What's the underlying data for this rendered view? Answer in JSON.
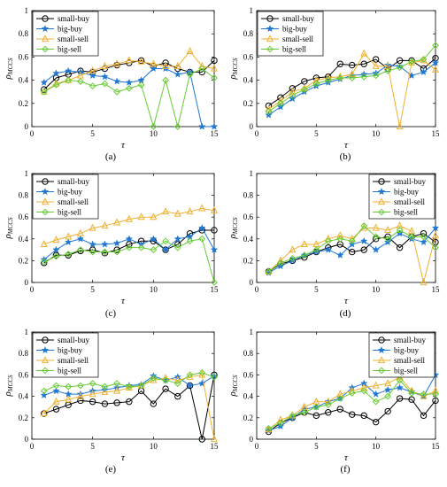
{
  "colors": {
    "small-buy": "#000000",
    "big-buy": "#1f77d4",
    "small-sell": "#f0b030",
    "big-sell": "#66cc33"
  },
  "markers": {
    "small-buy": "circle",
    "big-buy": "star",
    "small-sell": "triangle",
    "big-sell": "diamond"
  },
  "chart_data": [
    {
      "type": "line",
      "caption": "(a)",
      "xlabel": "τ",
      "ylabel": "ρMCCS",
      "xlim": [
        0,
        15
      ],
      "ylim": [
        0,
        1
      ],
      "xticks": [
        0,
        5,
        10,
        15
      ],
      "yticks": [
        0,
        0.2,
        0.4,
        0.6,
        0.8,
        1
      ],
      "ytick_labels": [
        "0",
        "0.2",
        "0.4",
        "0.6",
        "0.8",
        "1"
      ],
      "legend_position": "top-left",
      "x": [
        1,
        2,
        3,
        4,
        5,
        6,
        7,
        8,
        9,
        10,
        11,
        12,
        13,
        14,
        15
      ],
      "series": [
        {
          "name": "small-buy",
          "values": [
            0.32,
            0.42,
            0.45,
            0.48,
            0.47,
            0.5,
            0.53,
            0.55,
            0.57,
            0.52,
            0.55,
            0.5,
            0.47,
            0.47,
            0.57
          ]
        },
        {
          "name": "big-buy",
          "values": [
            0.38,
            0.46,
            0.48,
            0.47,
            0.44,
            0.43,
            0.39,
            0.38,
            0.4,
            0.5,
            0.5,
            0.45,
            0.47,
            0.0,
            0.0
          ]
        },
        {
          "name": "small-sell",
          "values": [
            0.3,
            0.37,
            0.4,
            0.44,
            0.48,
            0.52,
            0.54,
            0.57,
            0.56,
            0.54,
            0.52,
            0.52,
            0.65,
            0.52,
            0.5
          ]
        },
        {
          "name": "big-sell",
          "values": [
            0.3,
            0.36,
            0.4,
            0.39,
            0.35,
            0.37,
            0.3,
            0.33,
            0.36,
            0.0,
            0.4,
            0.0,
            0.45,
            0.5,
            0.42
          ]
        }
      ]
    },
    {
      "type": "line",
      "caption": "(b)",
      "xlabel": "τ",
      "ylabel": "ρMCCS",
      "xlim": [
        0,
        15
      ],
      "ylim": [
        0,
        1
      ],
      "xticks": [
        0,
        5,
        10,
        15
      ],
      "yticks": [
        0,
        0.2,
        0.4,
        0.6,
        0.8,
        1
      ],
      "ytick_labels": [
        "0",
        "0.2",
        "0.4",
        "0.6",
        "0.8",
        "1"
      ],
      "legend_position": "top-left",
      "x": [
        1,
        2,
        3,
        4,
        5,
        6,
        7,
        8,
        9,
        10,
        11,
        12,
        13,
        14,
        15
      ],
      "series": [
        {
          "name": "small-buy",
          "values": [
            0.18,
            0.25,
            0.33,
            0.39,
            0.42,
            0.43,
            0.54,
            0.53,
            0.54,
            0.58,
            0.5,
            0.57,
            0.57,
            0.5,
            0.59
          ]
        },
        {
          "name": "big-buy",
          "values": [
            0.1,
            0.17,
            0.24,
            0.3,
            0.35,
            0.38,
            0.41,
            0.44,
            0.45,
            0.46,
            0.53,
            0.52,
            0.44,
            0.47,
            0.55
          ]
        },
        {
          "name": "small-sell",
          "values": [
            0.15,
            0.22,
            0.3,
            0.33,
            0.4,
            0.42,
            0.43,
            0.45,
            0.63,
            0.52,
            0.52,
            0.0,
            0.55,
            0.57,
            0.49
          ]
        },
        {
          "name": "big-sell",
          "values": [
            0.13,
            0.2,
            0.27,
            0.32,
            0.37,
            0.4,
            0.42,
            0.42,
            0.43,
            0.44,
            0.48,
            0.51,
            0.56,
            0.58,
            0.7
          ]
        }
      ]
    },
    {
      "type": "line",
      "caption": "(c)",
      "xlabel": "τ",
      "ylabel": "ρMCCS",
      "xlim": [
        0,
        15
      ],
      "ylim": [
        0,
        1
      ],
      "xticks": [
        0,
        5,
        10,
        15
      ],
      "yticks": [
        0,
        0.2,
        0.4,
        0.6,
        0.8,
        1
      ],
      "ytick_labels": [
        "0",
        "0.2",
        "0.4",
        "0.6",
        "0.8",
        "1"
      ],
      "legend_position": "top-left",
      "x": [
        1,
        2,
        3,
        4,
        5,
        6,
        7,
        8,
        9,
        10,
        11,
        12,
        13,
        14,
        15
      ],
      "series": [
        {
          "name": "small-buy",
          "values": [
            0.18,
            0.25,
            0.25,
            0.29,
            0.3,
            0.27,
            0.3,
            0.35,
            0.38,
            0.38,
            0.3,
            0.35,
            0.45,
            0.48,
            0.48
          ]
        },
        {
          "name": "big-buy",
          "values": [
            0.21,
            0.3,
            0.37,
            0.4,
            0.35,
            0.35,
            0.36,
            0.4,
            0.35,
            0.4,
            0.3,
            0.4,
            0.42,
            0.5,
            0.3
          ]
        },
        {
          "name": "small-sell",
          "values": [
            0.35,
            0.39,
            0.42,
            0.45,
            0.5,
            0.52,
            0.55,
            0.58,
            0.6,
            0.6,
            0.65,
            0.63,
            0.65,
            0.68,
            0.66
          ]
        },
        {
          "name": "big-sell",
          "values": [
            0.19,
            0.24,
            0.26,
            0.3,
            0.28,
            0.28,
            0.28,
            0.32,
            0.32,
            0.3,
            0.38,
            0.32,
            0.38,
            0.4,
            0.0
          ]
        }
      ]
    },
    {
      "type": "line",
      "caption": "(d)",
      "xlabel": "τ",
      "ylabel": "ρMCCS",
      "xlim": [
        0,
        15
      ],
      "ylim": [
        0,
        1
      ],
      "xticks": [
        0,
        5,
        10,
        15
      ],
      "yticks": [
        0,
        0.2,
        0.4,
        0.6,
        0.8,
        1
      ],
      "ytick_labels": [
        "0",
        "0.2",
        "0.4",
        "0.6",
        "0.8",
        "1"
      ],
      "legend_position": "top-right",
      "x": [
        1,
        2,
        3,
        4,
        5,
        6,
        7,
        8,
        9,
        10,
        11,
        12,
        13,
        14,
        15
      ],
      "series": [
        {
          "name": "small-buy",
          "values": [
            0.1,
            0.17,
            0.2,
            0.23,
            0.28,
            0.32,
            0.35,
            0.28,
            0.3,
            0.4,
            0.42,
            0.32,
            0.42,
            0.45,
            0.37
          ]
        },
        {
          "name": "big-buy",
          "values": [
            0.09,
            0.15,
            0.2,
            0.25,
            0.28,
            0.3,
            0.25,
            0.35,
            0.38,
            0.3,
            0.37,
            0.45,
            0.4,
            0.37,
            0.5
          ]
        },
        {
          "name": "small-sell",
          "values": [
            0.1,
            0.2,
            0.3,
            0.35,
            0.35,
            0.4,
            0.43,
            0.4,
            0.5,
            0.5,
            0.48,
            0.52,
            0.47,
            0.0,
            0.43
          ]
        },
        {
          "name": "big-sell",
          "values": [
            0.1,
            0.18,
            0.22,
            0.25,
            0.3,
            0.38,
            0.4,
            0.38,
            0.52,
            0.42,
            0.4,
            0.48,
            0.42,
            0.42,
            0.32
          ]
        }
      ]
    },
    {
      "type": "line",
      "caption": "(e)",
      "xlabel": "τ",
      "ylabel": "ρMCCS",
      "xlim": [
        0,
        15
      ],
      "ylim": [
        0,
        1
      ],
      "xticks": [
        0,
        5,
        10,
        15
      ],
      "yticks": [
        0,
        0.2,
        0.4,
        0.6,
        0.8,
        1
      ],
      "ytick_labels": [
        "0",
        "0.2",
        "0.4",
        "0.6",
        "0.8",
        "1"
      ],
      "legend_position": "top-left",
      "x": [
        1,
        2,
        3,
        4,
        5,
        6,
        7,
        8,
        9,
        10,
        11,
        12,
        13,
        14,
        15
      ],
      "series": [
        {
          "name": "small-buy",
          "values": [
            0.24,
            0.28,
            0.32,
            0.36,
            0.35,
            0.33,
            0.34,
            0.35,
            0.45,
            0.33,
            0.47,
            0.4,
            0.5,
            0.0,
            0.6
          ]
        },
        {
          "name": "big-buy",
          "values": [
            0.41,
            0.45,
            0.42,
            0.42,
            0.45,
            0.46,
            0.48,
            0.5,
            0.51,
            0.59,
            0.55,
            0.58,
            0.5,
            0.52,
            0.59
          ]
        },
        {
          "name": "small-sell",
          "values": [
            0.24,
            0.35,
            0.37,
            0.4,
            0.42,
            0.44,
            0.45,
            0.48,
            0.5,
            0.55,
            0.57,
            0.55,
            0.58,
            0.6,
            0.0
          ]
        },
        {
          "name": "big-sell",
          "values": [
            0.45,
            0.5,
            0.49,
            0.5,
            0.52,
            0.49,
            0.52,
            0.49,
            0.5,
            0.57,
            0.55,
            0.52,
            0.6,
            0.62,
            0.58
          ]
        }
      ]
    },
    {
      "type": "line",
      "caption": "(f)",
      "xlabel": "τ",
      "ylabel": "ρMCCS",
      "xlim": [
        0,
        15
      ],
      "ylim": [
        0,
        1
      ],
      "xticks": [
        0,
        5,
        10,
        15
      ],
      "yticks": [
        0,
        0.2,
        0.4,
        0.6,
        0.8,
        1
      ],
      "ytick_labels": [
        "0",
        "0.2",
        "0.4",
        "0.6",
        "0.8",
        "1"
      ],
      "legend_position": "top-right",
      "x": [
        1,
        2,
        3,
        4,
        5,
        6,
        7,
        8,
        9,
        10,
        11,
        12,
        13,
        14,
        15
      ],
      "series": [
        {
          "name": "small-buy",
          "values": [
            0.07,
            0.15,
            0.2,
            0.25,
            0.22,
            0.25,
            0.28,
            0.23,
            0.22,
            0.16,
            0.26,
            0.38,
            0.37,
            0.22,
            0.36
          ]
        },
        {
          "name": "big-buy",
          "values": [
            0.08,
            0.12,
            0.2,
            0.28,
            0.3,
            0.35,
            0.38,
            0.48,
            0.52,
            0.42,
            0.46,
            0.48,
            0.44,
            0.4,
            0.6
          ]
        },
        {
          "name": "small-sell",
          "values": [
            0.09,
            0.18,
            0.22,
            0.3,
            0.35,
            0.35,
            0.42,
            0.45,
            0.48,
            0.5,
            0.52,
            0.58,
            0.45,
            0.4,
            0.45
          ]
        },
        {
          "name": "big-sell",
          "values": [
            0.1,
            0.15,
            0.22,
            0.25,
            0.3,
            0.32,
            0.38,
            0.43,
            0.45,
            0.35,
            0.4,
            0.55,
            0.43,
            0.42,
            0.42
          ]
        }
      ]
    }
  ]
}
